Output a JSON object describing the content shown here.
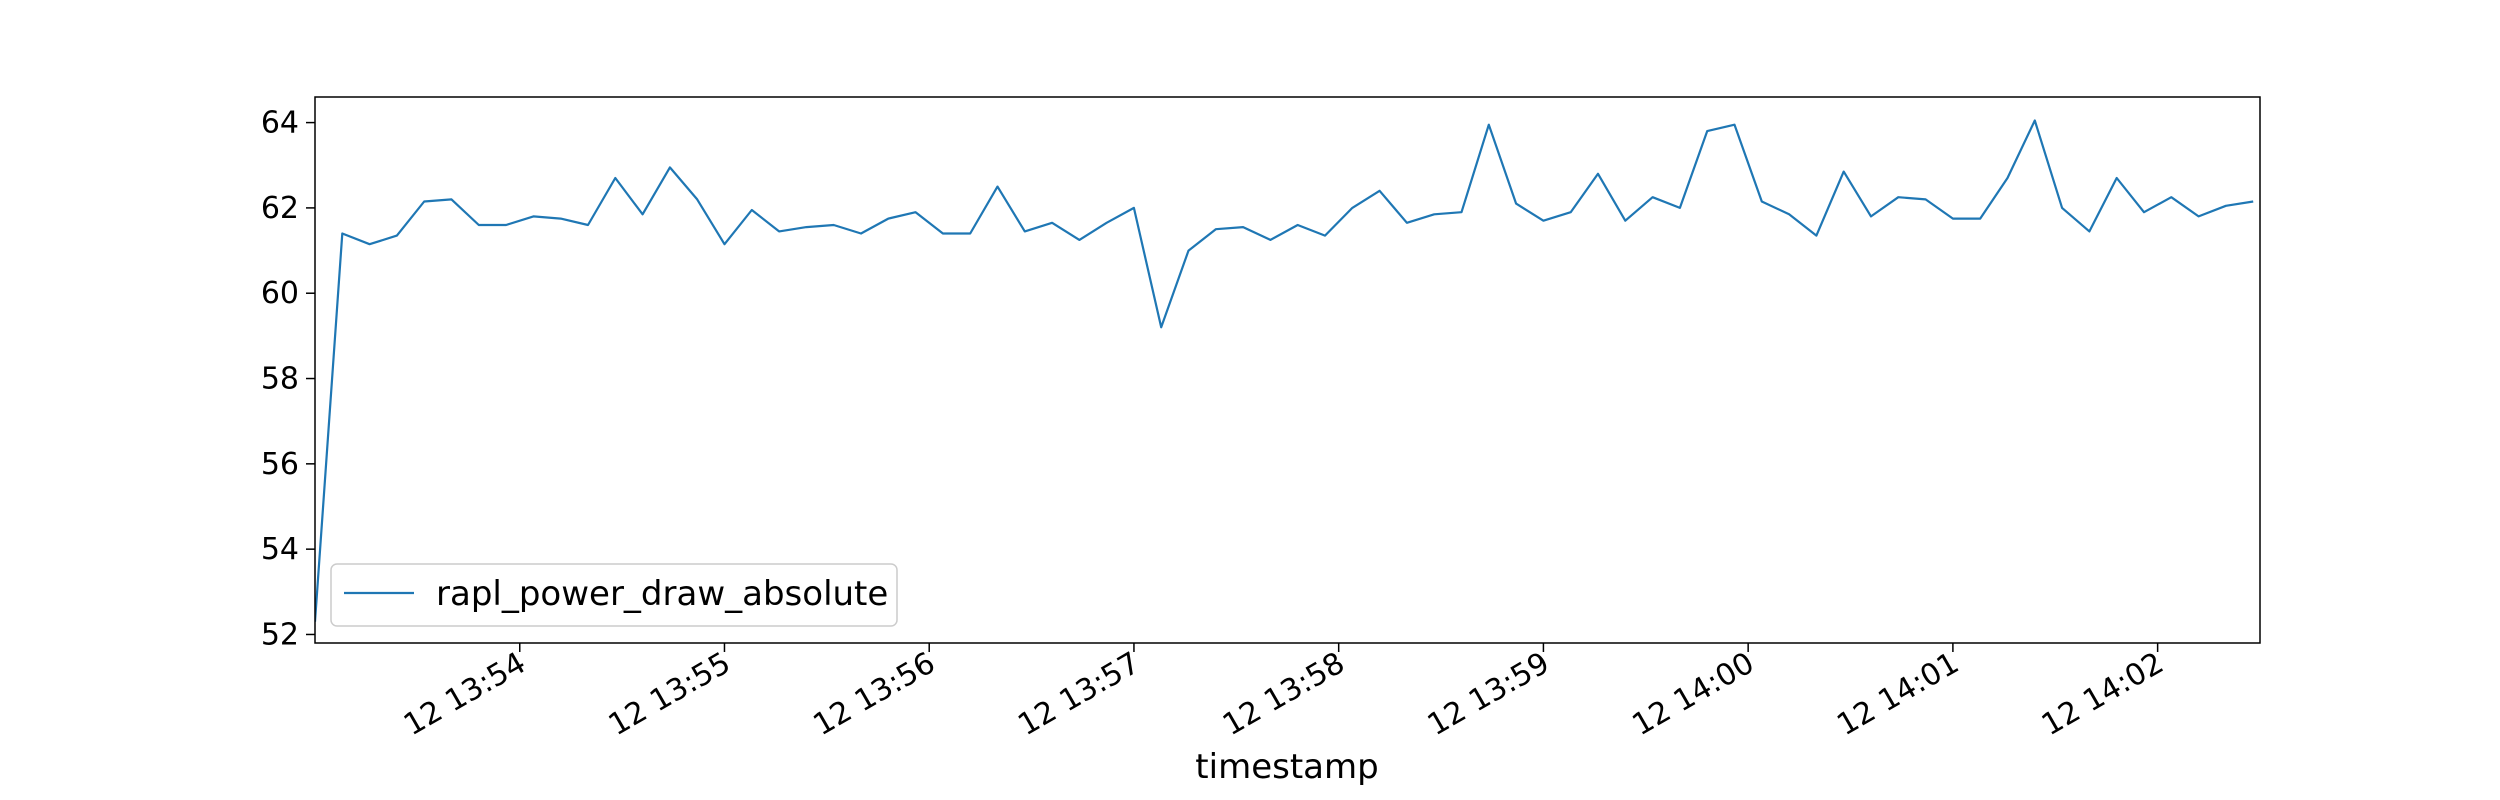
{
  "chart_data": {
    "type": "line",
    "title": "",
    "xlabel": "timestamp",
    "ylabel": "",
    "x_unit": "seconds",
    "xlim": [
      "13:53:00",
      "14:02:30"
    ],
    "ylim": [
      51.8,
      64.6
    ],
    "x_ticks": [
      {
        "value": "13:54:00",
        "label": "12 13:54"
      },
      {
        "value": "13:55:00",
        "label": "12 13:55"
      },
      {
        "value": "13:56:00",
        "label": "12 13:56"
      },
      {
        "value": "13:57:00",
        "label": "12 13:57"
      },
      {
        "value": "13:58:00",
        "label": "12 13:58"
      },
      {
        "value": "13:59:00",
        "label": "12 13:59"
      },
      {
        "value": "14:00:00",
        "label": "12 14:00"
      },
      {
        "value": "14:01:00",
        "label": "12 14:01"
      },
      {
        "value": "14:02:00",
        "label": "12 14:02"
      }
    ],
    "y_ticks": [
      52,
      54,
      56,
      58,
      60,
      62,
      64
    ],
    "grid": false,
    "legend_position": "lower-left",
    "series": [
      {
        "name": "rapl_power_draw_absolute",
        "color": "#1f77b4",
        "x": [
          "13:53:00",
          "13:53:08",
          "13:53:16",
          "13:53:24",
          "13:53:32",
          "13:53:40",
          "13:53:48",
          "13:53:56",
          "13:54:04",
          "13:54:12",
          "13:54:20",
          "13:54:28",
          "13:54:36",
          "13:54:44",
          "13:54:52",
          "13:55:00",
          "13:55:08",
          "13:55:16",
          "13:55:24",
          "13:55:32",
          "13:55:40",
          "13:55:48",
          "13:55:56",
          "13:56:04",
          "13:56:12",
          "13:56:20",
          "13:56:28",
          "13:56:36",
          "13:56:44",
          "13:56:52",
          "13:57:00",
          "13:57:08",
          "13:57:16",
          "13:57:24",
          "13:57:32",
          "13:57:40",
          "13:57:48",
          "13:57:56",
          "13:58:04",
          "13:58:12",
          "13:58:20",
          "13:58:28",
          "13:58:36",
          "13:58:44",
          "13:58:52",
          "13:59:00",
          "13:59:08",
          "13:59:16",
          "13:59:24",
          "13:59:32",
          "13:59:40",
          "13:59:48",
          "13:59:56",
          "14:00:04",
          "14:00:12",
          "14:00:20",
          "14:00:28",
          "14:00:36",
          "14:00:44",
          "14:00:52",
          "14:01:00",
          "14:01:08",
          "14:01:16",
          "14:01:24",
          "14:01:32",
          "14:01:40",
          "14:01:48",
          "14:01:56",
          "14:02:04",
          "14:02:12",
          "14:02:20",
          "14:02:28"
        ],
        "values": [
          52.3,
          61.4,
          61.15,
          61.35,
          62.15,
          62.2,
          61.6,
          61.6,
          61.8,
          61.75,
          61.6,
          62.7,
          61.85,
          62.95,
          62.2,
          61.15,
          61.95,
          61.45,
          61.55,
          61.6,
          61.4,
          61.75,
          61.9,
          61.4,
          61.4,
          62.5,
          61.45,
          61.65,
          61.25,
          61.65,
          62.0,
          59.2,
          61.0,
          61.5,
          61.55,
          61.25,
          61.6,
          61.35,
          62.0,
          62.4,
          61.65,
          61.85,
          61.9,
          63.95,
          62.1,
          61.7,
          61.9,
          62.8,
          61.7,
          62.25,
          62.0,
          63.8,
          63.95,
          62.15,
          61.85,
          61.35,
          62.85,
          61.8,
          62.25,
          62.2,
          61.75,
          61.75,
          62.7,
          64.05,
          62.0,
          61.45,
          62.7,
          61.9,
          62.25,
          61.8,
          62.05,
          62.15
        ]
      }
    ]
  }
}
